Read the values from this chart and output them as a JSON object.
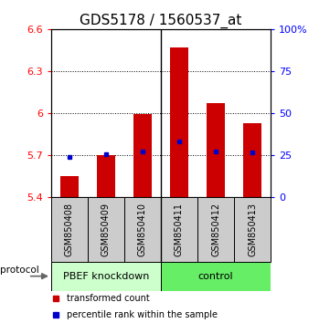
{
  "title": "GDS5178 / 1560537_at",
  "samples": [
    "GSM850408",
    "GSM850409",
    "GSM850410",
    "GSM850411",
    "GSM850412",
    "GSM850413"
  ],
  "red_bar_values": [
    5.55,
    5.7,
    5.99,
    6.47,
    6.07,
    5.93
  ],
  "blue_dot_values": [
    5.685,
    5.705,
    5.725,
    5.8,
    5.725,
    5.72
  ],
  "ylim": [
    5.4,
    6.6
  ],
  "y_left_ticks": [
    5.4,
    5.7,
    6.0,
    6.3,
    6.6
  ],
  "y_right_ticks": [
    0,
    25,
    50,
    75,
    100
  ],
  "ytick_labels_left": [
    "5.4",
    "5.7",
    "6",
    "6.3",
    "6.6"
  ],
  "ytick_labels_right": [
    "0",
    "25",
    "50",
    "75",
    "100%"
  ],
  "dotted_lines": [
    5.7,
    6.0,
    6.3
  ],
  "bar_bottom": 5.4,
  "bar_color": "#cc0000",
  "dot_color": "#0000cc",
  "group_bg_color": "#cccccc",
  "knockdown_color": "#ccffcc",
  "control_color": "#66ee66",
  "title_fontsize": 11,
  "tick_fontsize": 8,
  "label_fontsize": 7,
  "group_fontsize": 8,
  "legend_fontsize": 7,
  "bar_width": 0.5,
  "legend_red": "transformed count",
  "legend_blue": "percentile rank within the sample"
}
